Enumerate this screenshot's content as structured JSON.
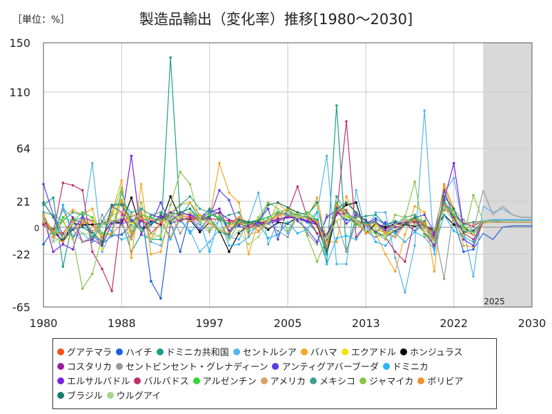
{
  "chart_data": {
    "type": "line",
    "title": "製造品輸出（変化率）推移[1980～2030]",
    "unit_label": "［単位：%］",
    "xlim": [
      1980,
      2030
    ],
    "ylim": [
      -65,
      150
    ],
    "x_ticks": [
      1980,
      1988,
      1997,
      2005,
      2013,
      2022,
      2030
    ],
    "y_ticks": [
      150,
      110,
      64,
      21,
      0,
      -22,
      -65
    ],
    "forecast_start": 2025,
    "forecast_label": "2025",
    "grid": true,
    "legend_position": "bottom",
    "x": [
      1980,
      1981,
      1982,
      1983,
      1984,
      1985,
      1986,
      1987,
      1988,
      1989,
      1990,
      1991,
      1992,
      1993,
      1994,
      1995,
      1996,
      1997,
      1998,
      1999,
      2000,
      2001,
      2002,
      2003,
      2004,
      2005,
      2006,
      2007,
      2008,
      2009,
      2010,
      2011,
      2012,
      2013,
      2014,
      2015,
      2016,
      2017,
      2018,
      2019,
      2020,
      2021,
      2022,
      2023,
      2024,
      2025,
      2026,
      2027,
      2028,
      2029,
      2030
    ],
    "series": [
      {
        "name": "グアテマラ",
        "color": "#f4511e",
        "values": [
          3,
          -4,
          -5,
          6,
          4,
          2,
          -8,
          5,
          4,
          9,
          11,
          5,
          7,
          10,
          8,
          9,
          5,
          7,
          6,
          3,
          8,
          2,
          1,
          4,
          6,
          9,
          7,
          8,
          4,
          -10,
          12,
          14,
          2,
          3,
          4,
          -1,
          2,
          3,
          4,
          1,
          -4,
          14,
          12,
          3,
          4,
          5,
          6,
          5,
          5,
          5,
          5
        ]
      },
      {
        "name": "ハイチ",
        "color": "#1a5fe0",
        "values": [
          -14,
          -2,
          5,
          -8,
          3,
          -3,
          -14,
          -7,
          -6,
          2,
          15,
          -44,
          -58,
          4,
          -20,
          10,
          8,
          14,
          11,
          -3,
          2,
          4,
          3,
          6,
          5,
          8,
          7,
          4,
          2,
          -6,
          12,
          6,
          5,
          3,
          7,
          2,
          4,
          3,
          -3,
          5,
          -18,
          22,
          5,
          -20,
          -18,
          -5,
          -10,
          0,
          1,
          1,
          1
        ]
      },
      {
        "name": "ドミニカ共和国",
        "color": "#16a085",
        "values": [
          18,
          24,
          -32,
          5,
          8,
          -10,
          2,
          3,
          5,
          -20,
          -6,
          -10,
          -10,
          138,
          8,
          20,
          6,
          15,
          6,
          3,
          2,
          4,
          6,
          8,
          12,
          10,
          7,
          5,
          -5,
          -28,
          99,
          -20,
          8,
          9,
          10,
          2,
          5,
          3,
          6,
          4,
          -12,
          20,
          8,
          -4,
          -6,
          4,
          5,
          4,
          4,
          4,
          4
        ]
      },
      {
        "name": "セントルシア",
        "color": "#56b4e9",
        "values": [
          10,
          -5,
          15,
          8,
          2,
          52,
          -20,
          -3,
          28,
          5,
          0,
          -12,
          -15,
          8,
          5,
          -3,
          -20,
          -12,
          -2,
          -8,
          -10,
          5,
          28,
          -14,
          5,
          -5,
          10,
          5,
          12,
          58,
          -30,
          -30,
          30,
          -4,
          12,
          12,
          -25,
          -53,
          -15,
          95,
          -22,
          28,
          40,
          -2,
          -40,
          17,
          12,
          15,
          10,
          8,
          8
        ]
      },
      {
        "name": "バハマ",
        "color": "#f5a623",
        "values": [
          5,
          -5,
          8,
          14,
          10,
          15,
          -12,
          12,
          38,
          -25,
          35,
          -22,
          -20,
          12,
          18,
          20,
          10,
          7,
          52,
          28,
          20,
          -22,
          5,
          3,
          20,
          12,
          10,
          7,
          24,
          -12,
          -12,
          25,
          10,
          3,
          -5,
          -22,
          -36,
          -6,
          17,
          12,
          -36,
          33,
          12,
          -15,
          -16,
          3,
          5,
          5,
          5,
          5,
          5
        ]
      },
      {
        "name": "エクアドル",
        "color": "#f1e30b",
        "values": [
          5,
          -3,
          6,
          -10,
          4,
          8,
          -18,
          9,
          22,
          3,
          6,
          10,
          8,
          2,
          9,
          12,
          8,
          4,
          -4,
          1,
          4,
          2,
          6,
          4,
          10,
          12,
          9,
          7,
          3,
          -10,
          14,
          8,
          5,
          2,
          1,
          -6,
          -3,
          4,
          5,
          2,
          -8,
          20,
          10,
          2,
          4,
          5,
          4,
          4,
          4,
          4,
          4
        ]
      },
      {
        "name": "ホンジュラス",
        "color": "#000000",
        "values": [
          5,
          -2,
          -12,
          3,
          2,
          2,
          3,
          5,
          3,
          24,
          -2,
          5,
          2,
          25,
          7,
          6,
          -4,
          4,
          -3,
          -20,
          -5,
          2,
          4,
          -2,
          4,
          3,
          8,
          9,
          2,
          -22,
          12,
          18,
          20,
          -5,
          3,
          0,
          3,
          2,
          1,
          2,
          -3,
          10,
          2,
          0,
          -6,
          5,
          4,
          4,
          4,
          4,
          4
        ]
      },
      {
        "name": "コスタリカ",
        "color": "#9b1f9b",
        "values": [
          2,
          -5,
          -10,
          8,
          -12,
          -10,
          -15,
          17,
          12,
          -5,
          5,
          2,
          8,
          12,
          10,
          10,
          6,
          9,
          12,
          6,
          4,
          3,
          2,
          4,
          7,
          8,
          8,
          5,
          2,
          -8,
          12,
          10,
          3,
          4,
          5,
          -4,
          0,
          2,
          5,
          3,
          -6,
          20,
          12,
          3,
          1,
          5,
          5,
          5,
          5,
          5,
          5
        ]
      },
      {
        "name": "セントビンセント・グレナディーン",
        "color": "#999999",
        "values": [
          8,
          -6,
          14,
          -2,
          -12,
          -8,
          10,
          -5,
          2,
          -10,
          9,
          -10,
          5,
          10,
          -5,
          8,
          2,
          -4,
          6,
          -10,
          3,
          -2,
          5,
          3,
          -3,
          -8,
          10,
          -5,
          -14,
          10,
          5,
          -20,
          3,
          -4,
          -8,
          -5,
          -8,
          9,
          -4,
          2,
          -2,
          -42,
          14,
          6,
          -3,
          30,
          10,
          17,
          10,
          8,
          8
        ]
      },
      {
        "name": "アンティグアバーブーダ",
        "color": "#5b3fe0",
        "values": [
          35,
          10,
          -6,
          -2,
          8,
          -6,
          -15,
          3,
          3,
          5,
          8,
          3,
          20,
          3,
          6,
          8,
          -2,
          8,
          30,
          22,
          1,
          -2,
          5,
          15,
          -10,
          15,
          5,
          -2,
          -12,
          8,
          14,
          3,
          10,
          6,
          -5,
          4,
          -5,
          2,
          8,
          10,
          -4,
          30,
          8,
          -10,
          -15,
          5,
          6,
          6,
          6,
          6,
          6
        ]
      },
      {
        "name": "ドミニカ",
        "color": "#29b6f6",
        "values": [
          5,
          -12,
          18,
          -8,
          -5,
          -12,
          5,
          -4,
          -10,
          -7,
          8,
          3,
          6,
          -10,
          7,
          -5,
          5,
          -20,
          8,
          -15,
          -14,
          -8,
          3,
          -9,
          -6,
          4,
          -5,
          -2,
          12,
          -30,
          -9,
          -7,
          -10,
          2,
          -12,
          -15,
          -5,
          -12,
          -4,
          -8,
          -18,
          10,
          -3,
          -8,
          -12,
          5,
          6,
          6,
          6,
          6,
          6
        ]
      },
      {
        "name": "エルサルバドル",
        "color": "#7b1fe0",
        "values": [
          8,
          -20,
          -14,
          -18,
          8,
          5,
          -8,
          5,
          6,
          58,
          -6,
          10,
          8,
          10,
          12,
          10,
          6,
          12,
          15,
          -3,
          6,
          2,
          4,
          3,
          5,
          8,
          7,
          5,
          4,
          -10,
          16,
          10,
          2,
          3,
          4,
          -2,
          3,
          4,
          6,
          2,
          -8,
          22,
          52,
          -2,
          -5,
          5,
          5,
          5,
          5,
          5,
          5
        ]
      },
      {
        "name": "バルバドス",
        "color": "#c0306b",
        "values": [
          5,
          -5,
          36,
          34,
          30,
          -20,
          -34,
          -52,
          12,
          5,
          8,
          -5,
          3,
          10,
          5,
          8,
          5,
          7,
          6,
          5,
          3,
          0,
          2,
          6,
          10,
          12,
          33,
          8,
          -5,
          -8,
          10,
          86,
          -8,
          2,
          -4,
          -8,
          -20,
          -28,
          6,
          -5,
          -15,
          18,
          8,
          -5,
          -10,
          5,
          5,
          5,
          5,
          5,
          5
        ]
      },
      {
        "name": "アルゼンチン",
        "color": "#33d633",
        "values": [
          10,
          -5,
          8,
          5,
          12,
          8,
          -5,
          -6,
          30,
          -4,
          10,
          8,
          5,
          10,
          12,
          15,
          5,
          10,
          8,
          2,
          5,
          3,
          5,
          8,
          12,
          14,
          10,
          12,
          6,
          -20,
          20,
          10,
          2,
          3,
          4,
          -5,
          -3,
          5,
          8,
          4,
          -10,
          20,
          10,
          0,
          -3,
          5,
          5,
          5,
          5,
          5,
          5
        ]
      },
      {
        "name": "アメリカ",
        "color": "#d9a066",
        "values": [
          8,
          -3,
          -7,
          4,
          6,
          -3,
          3,
          10,
          12,
          10,
          7,
          6,
          5,
          6,
          9,
          12,
          7,
          5,
          -2,
          1,
          8,
          -6,
          -4,
          4,
          9,
          10,
          8,
          9,
          5,
          -15,
          14,
          12,
          4,
          2,
          3,
          -5,
          -3,
          5,
          6,
          -1,
          -12,
          18,
          14,
          -2,
          2,
          5,
          4,
          4,
          4,
          4,
          4
        ]
      },
      {
        "name": "メキシコ",
        "color": "#3fa08f",
        "values": [
          12,
          10,
          5,
          12,
          10,
          -8,
          5,
          18,
          20,
          12,
          15,
          10,
          12,
          10,
          18,
          25,
          15,
          12,
          6,
          10,
          12,
          -4,
          2,
          3,
          12,
          10,
          10,
          8,
          6,
          -22,
          25,
          12,
          6,
          3,
          4,
          -4,
          2,
          8,
          10,
          2,
          -10,
          20,
          12,
          2,
          4,
          5,
          5,
          5,
          5,
          5,
          5
        ]
      },
      {
        "name": "ジャマイカ",
        "color": "#8bc34a",
        "values": [
          10,
          -8,
          5,
          -9,
          -50,
          -38,
          -8,
          10,
          32,
          -5,
          20,
          -5,
          -8,
          18,
          45,
          35,
          5,
          -2,
          10,
          -5,
          4,
          -2,
          8,
          20,
          15,
          -3,
          10,
          -7,
          -28,
          -9,
          5,
          10,
          5,
          -4,
          -5,
          -10,
          10,
          8,
          37,
          -8,
          -2,
          16,
          5,
          -8,
          26,
          5,
          5,
          5,
          5,
          5,
          5
        ]
      },
      {
        "name": "ボリビア",
        "color": "#f0902a",
        "values": [
          10,
          -8,
          -12,
          -2,
          3,
          5,
          -8,
          -5,
          22,
          -8,
          12,
          -10,
          5,
          -8,
          8,
          5,
          7,
          3,
          -2,
          -5,
          8,
          4,
          -3,
          6,
          10,
          15,
          12,
          10,
          4,
          -18,
          18,
          10,
          6,
          -5,
          -2,
          -4,
          -8,
          2,
          7,
          3,
          -10,
          35,
          15,
          -4,
          -6,
          5,
          5,
          5,
          5,
          5,
          5
        ]
      },
      {
        "name": "ブラジル",
        "color": "#1b7a6f",
        "values": [
          20,
          8,
          -10,
          -2,
          0,
          -5,
          -12,
          18,
          18,
          6,
          -3,
          2,
          10,
          4,
          12,
          15,
          6,
          8,
          -4,
          -6,
          6,
          4,
          5,
          18,
          20,
          16,
          12,
          10,
          20,
          -20,
          15,
          20,
          12,
          5,
          -4,
          -8,
          -3,
          2,
          8,
          -5,
          -12,
          25,
          15,
          -4,
          -3,
          5,
          5,
          5,
          5,
          5,
          5
        ]
      },
      {
        "name": "ウルグアイ",
        "color": "#a5d68a",
        "values": [
          5,
          -12,
          -8,
          3,
          -5,
          -6,
          2,
          5,
          8,
          10,
          -2,
          -10,
          -6,
          10,
          8,
          12,
          6,
          4,
          -2,
          -10,
          -3,
          -14,
          -8,
          5,
          15,
          12,
          8,
          10,
          18,
          -8,
          5,
          10,
          6,
          -3,
          -2,
          -8,
          2,
          7,
          2,
          -4,
          -12,
          16,
          12,
          -2,
          -5,
          5,
          5,
          5,
          5,
          5,
          5
        ]
      }
    ]
  }
}
